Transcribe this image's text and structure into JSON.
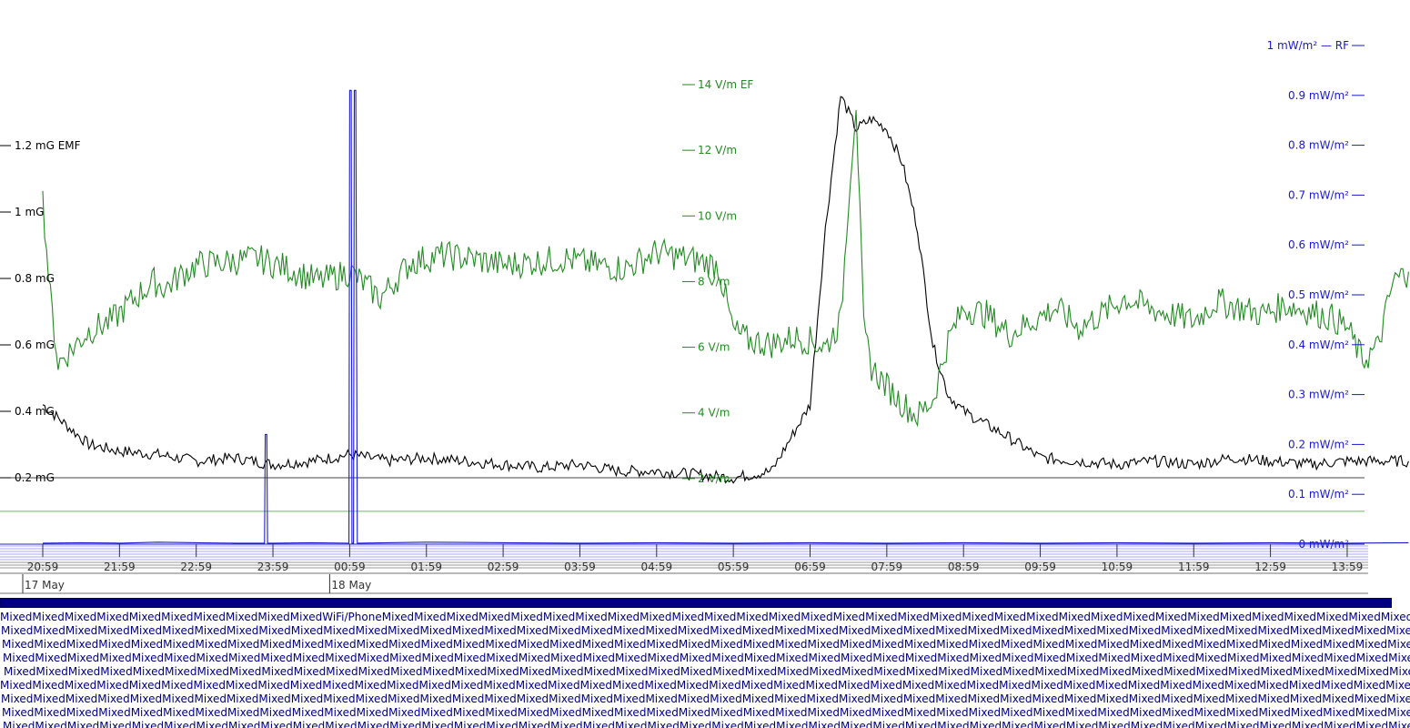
{
  "chart_data": {
    "type": "line",
    "title": "",
    "x_ticks": [
      "20:59",
      "21:59",
      "22:59",
      "23:59",
      "00:59",
      "01:59",
      "02:59",
      "03:59",
      "04:59",
      "05:59",
      "06:59",
      "07:59",
      "08:59",
      "09:59",
      "10:59",
      "11:59",
      "12:59",
      "13:59"
    ],
    "date_labels": [
      {
        "label": "17 May",
        "at": "20:59"
      },
      {
        "label": "18 May",
        "at": "00:59"
      }
    ],
    "axes": {
      "emf": {
        "unit": "mG",
        "ylim": [
          0,
          1.37
        ],
        "ticks": [
          {
            "value": 0.2,
            "label": "0.2 mG"
          },
          {
            "value": 0.4,
            "label": "0.4 mG"
          },
          {
            "value": 0.6,
            "label": "0.6 mG"
          },
          {
            "value": 0.8,
            "label": "0.8 mG"
          },
          {
            "value": 1.0,
            "label": "1 mG"
          },
          {
            "value": 1.2,
            "label": "1.2 mG EMF"
          }
        ],
        "color": "#000000",
        "threshold": 0.2
      },
      "ef": {
        "unit": "V/m",
        "ylim": [
          0,
          14
        ],
        "ticks": [
          {
            "value": 2,
            "label": "2 V/m"
          },
          {
            "value": 4,
            "label": "4 V/m"
          },
          {
            "value": 6,
            "label": "6 V/m"
          },
          {
            "value": 8,
            "label": "8 V/m"
          },
          {
            "value": 10,
            "label": "10 V/m"
          },
          {
            "value": 12,
            "label": "12 V/m"
          },
          {
            "value": 14,
            "label": "14 V/m EF"
          }
        ],
        "color": "#228b22",
        "threshold": 1
      },
      "rf": {
        "unit": "mW/m²",
        "ylim": [
          0,
          1
        ],
        "ticks": [
          {
            "value": 0,
            "label": "0 mW/m²"
          },
          {
            "value": 0.1,
            "label": "0.1 mW/m²"
          },
          {
            "value": 0.2,
            "label": "0.2 mW/m²"
          },
          {
            "value": 0.3,
            "label": "0.3 mW/m²"
          },
          {
            "value": 0.4,
            "label": "0.4 mW/m²"
          },
          {
            "value": 0.5,
            "label": "0.5 mW/m²"
          },
          {
            "value": 0.6,
            "label": "0.6 mW/m²"
          },
          {
            "value": 0.7,
            "label": "0.7 mW/m²"
          },
          {
            "value": 0.8,
            "label": "0.8 mW/m²"
          },
          {
            "value": 0.9,
            "label": "0.9 mW/m²"
          },
          {
            "value": 1.0,
            "label": "1 mW/m² — RF"
          }
        ],
        "color": "#1a1acd"
      }
    },
    "series": [
      {
        "key": "emf",
        "x": [
          0,
          0.3,
          0.6,
          1.0,
          1.5,
          2.0,
          2.5,
          3.0,
          3.5,
          4.0,
          4.5,
          5.0,
          5.5,
          6.0,
          6.5,
          7.0,
          7.5,
          8.0,
          8.5,
          9.0,
          9.5,
          10.0,
          10.2,
          10.4,
          10.6,
          10.8,
          11.0,
          11.2,
          11.4,
          11.6,
          11.8,
          12.0,
          12.3,
          12.6,
          13.0,
          13.5,
          14.0,
          14.5,
          15.0,
          15.5,
          16.0,
          16.5,
          17.0,
          17.8
        ],
        "y": [
          0.42,
          0.36,
          0.3,
          0.28,
          0.27,
          0.25,
          0.26,
          0.24,
          0.25,
          0.27,
          0.25,
          0.26,
          0.25,
          0.24,
          0.23,
          0.24,
          0.22,
          0.22,
          0.21,
          0.2,
          0.22,
          0.42,
          0.95,
          1.35,
          1.25,
          1.28,
          1.25,
          1.15,
          0.95,
          0.6,
          0.45,
          0.4,
          0.36,
          0.32,
          0.26,
          0.25,
          0.24,
          0.25,
          0.24,
          0.26,
          0.25,
          0.24,
          0.25,
          0.25
        ]
      },
      {
        "key": "ef",
        "x": [
          0,
          0.1,
          0.2,
          0.4,
          0.6,
          0.9,
          1.2,
          1.45,
          1.6,
          1.8,
          2.0,
          2.4,
          2.8,
          3.2,
          3.6,
          4.0,
          4.4,
          4.8,
          5.2,
          5.6,
          6.0,
          6.4,
          6.8,
          7.2,
          7.6,
          8.0,
          8.4,
          8.8,
          9.0,
          9.2,
          9.5,
          9.8,
          10.0,
          10.2,
          10.4,
          10.5,
          10.6,
          10.7,
          10.8,
          11.0,
          11.2,
          11.4,
          11.6,
          11.8,
          12.0,
          12.3,
          12.6,
          12.9,
          13.2,
          13.5,
          13.8,
          14.1,
          14.4,
          14.7,
          15.0,
          15.3,
          15.6,
          15.9,
          16.2,
          16.5,
          16.8,
          17.0,
          17.2,
          17.4,
          17.6,
          17.8
        ],
        "y": [
          10.5,
          7.5,
          5.5,
          6.0,
          6.5,
          6.8,
          7.5,
          8.0,
          7.8,
          8.2,
          8.5,
          8.6,
          8.7,
          8.4,
          8.0,
          8.3,
          7.5,
          8.6,
          8.8,
          8.7,
          8.5,
          8.6,
          8.7,
          8.5,
          8.4,
          8.9,
          8.7,
          8.5,
          6.5,
          6.2,
          6.1,
          6.3,
          6.2,
          6.0,
          6.8,
          10.5,
          13.5,
          6.5,
          5.4,
          4.8,
          4.3,
          3.9,
          4.4,
          6.2,
          7.2,
          7.0,
          6.4,
          6.8,
          7.2,
          6.6,
          7.0,
          7.5,
          7.2,
          7.0,
          6.8,
          7.4,
          7.2,
          7.0,
          7.3,
          7.1,
          6.9,
          6.6,
          5.6,
          6.0,
          8.0,
          8.3
        ]
      },
      {
        "key": "rf",
        "x": [
          0,
          0.5,
          1.0,
          1.5,
          2.0,
          2.5,
          2.89,
          2.9,
          2.92,
          2.93,
          3.0,
          3.5,
          3.99,
          4.0,
          4.02,
          4.03,
          4.05,
          4.06,
          4.08,
          4.1,
          4.5,
          5.0,
          6.0,
          7.0,
          8.0,
          9.0,
          10.0,
          11.0,
          12.0,
          13.0,
          14.0,
          15.0,
          16.0,
          17.0,
          17.8
        ],
        "y": [
          0.002,
          0.003,
          0.002,
          0.004,
          0.003,
          0.002,
          0.002,
          0.22,
          0.22,
          0.002,
          0.002,
          0.003,
          0.002,
          0.91,
          0.91,
          0.002,
          0.002,
          0.91,
          0.91,
          0.002,
          0.003,
          0.004,
          0.003,
          0.002,
          0.003,
          0.002,
          0.003,
          0.002,
          0.003,
          0.002,
          0.003,
          0.002,
          0.003,
          0.002,
          0.003
        ]
      }
    ],
    "annotations": [
      "0.2 mG threshold",
      "EF threshold",
      "0 mW/m² baseline"
    ]
  },
  "sources": {
    "label": "Mixed",
    "special_label": "WiFi/Phone",
    "rows": 9
  }
}
